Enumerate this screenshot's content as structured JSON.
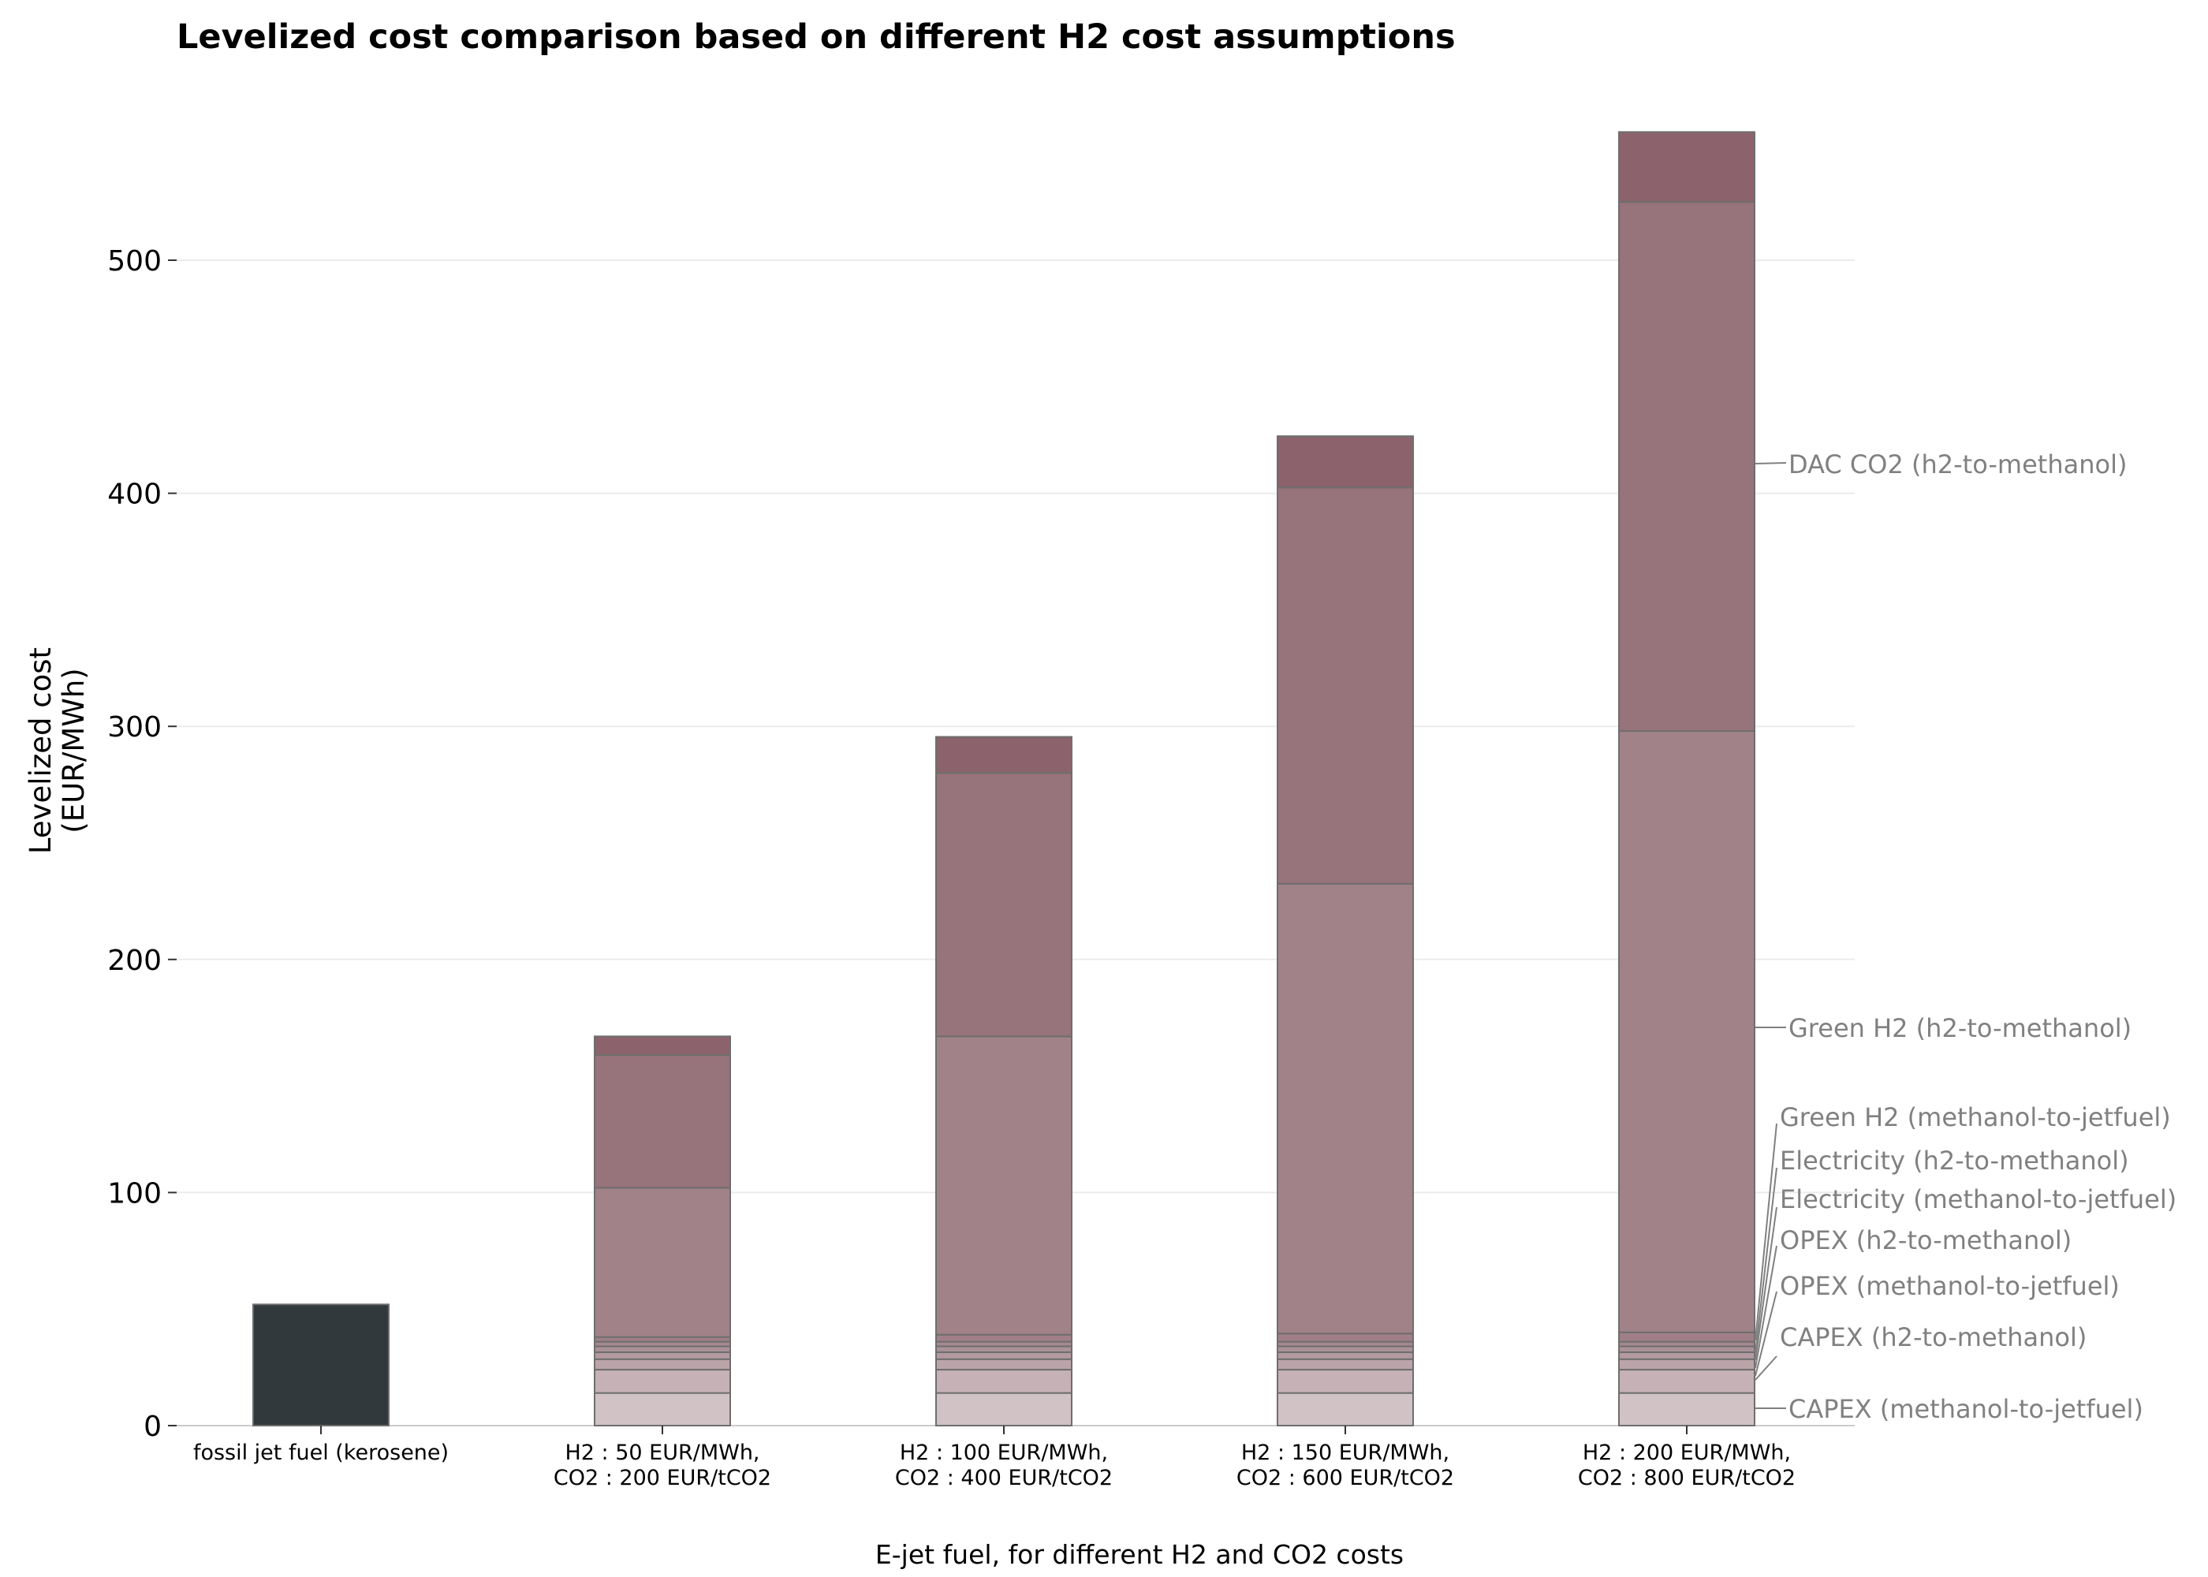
{
  "chart_data": {
    "type": "bar",
    "stacked": true,
    "title": "Levelized cost comparison based on different H2 cost assumptions",
    "ylabel": [
      "Levelized cost",
      "(EUR/MWh)"
    ],
    "xlabel": "E-jet fuel, for different H2 and CO2 costs",
    "ylim": [
      0,
      560
    ],
    "yticks": [
      0,
      100,
      200,
      300,
      400,
      500
    ],
    "grid": "horizontal",
    "categories": [
      [
        "fossil jet fuel (kerosene)"
      ],
      [
        "H2 : 50 EUR/MWh,",
        "CO2 : 200 EUR/tCO2"
      ],
      [
        "H2 : 100 EUR/MWh,",
        "CO2 : 400 EUR/tCO2"
      ],
      [
        "H2 : 150 EUR/MWh,",
        "CO2 : 600 EUR/tCO2"
      ],
      [
        "H2 : 200 EUR/MWh,",
        "CO2 : 800 EUR/tCO2"
      ]
    ],
    "fossil": {
      "value": 52,
      "color": "#32393c"
    },
    "series": [
      {
        "name": "CAPEX (methanol-to-jetfuel)",
        "color": "#d1c2c5",
        "values": [
          null,
          14,
          14,
          14,
          14
        ]
      },
      {
        "name": "CAPEX (h2-to-methanol)",
        "color": "#c5b1b6",
        "values": [
          null,
          10,
          10,
          10,
          10
        ]
      },
      {
        "name": "OPEX (methanol-to-jetfuel)",
        "color": "#bba4a9",
        "values": [
          null,
          4.5,
          4.5,
          4.5,
          4.5
        ]
      },
      {
        "name": "OPEX (h2-to-methanol)",
        "color": "#b39aa0",
        "values": [
          null,
          3,
          3,
          3,
          3
        ]
      },
      {
        "name": "Electricity (methanol-to-jetfuel)",
        "color": "#ab9198",
        "values": [
          null,
          2.5,
          2.5,
          2.5,
          2.5
        ]
      },
      {
        "name": "Electricity (h2-to-methanol)",
        "color": "#a58890",
        "values": [
          null,
          2,
          2,
          2,
          2
        ]
      },
      {
        "name": "Green H2 (methanol-to-jetfuel)",
        "color": "#a07f88",
        "values": [
          null,
          2,
          3,
          3.5,
          4
        ]
      },
      {
        "name": "Green H2 (h2-to-methanol)",
        "color": "#a18289",
        "values": [
          null,
          64,
          128,
          193,
          258
        ]
      },
      {
        "name": "DAC CO2 (h2-to-methanol)",
        "color": "#97737b",
        "values": [
          null,
          57,
          113,
          170,
          227
        ]
      },
      {
        "name": "",
        "color": "#8c636d",
        "values": [
          null,
          8,
          15.5,
          22,
          30
        ]
      }
    ],
    "annotations": [
      {
        "text": "DAC CO2 (h2-to-methanol)"
      },
      {
        "text": "Green H2 (h2-to-methanol)"
      },
      {
        "text": "Green H2 (methanol-to-jetfuel)"
      },
      {
        "text": "Electricity (h2-to-methanol)"
      },
      {
        "text": "Electricity (methanol-to-jetfuel)"
      },
      {
        "text": "OPEX (h2-to-methanol)"
      },
      {
        "text": "OPEX (methanol-to-jetfuel)"
      },
      {
        "text": "CAPEX (h2-to-methanol)"
      },
      {
        "text": "CAPEX (methanol-to-jetfuel)"
      }
    ],
    "colors": {
      "annotation": "#808080",
      "grid": "#ebebeb",
      "bar_edge": "#6e6e6e",
      "axis": "#cccccc"
    }
  }
}
